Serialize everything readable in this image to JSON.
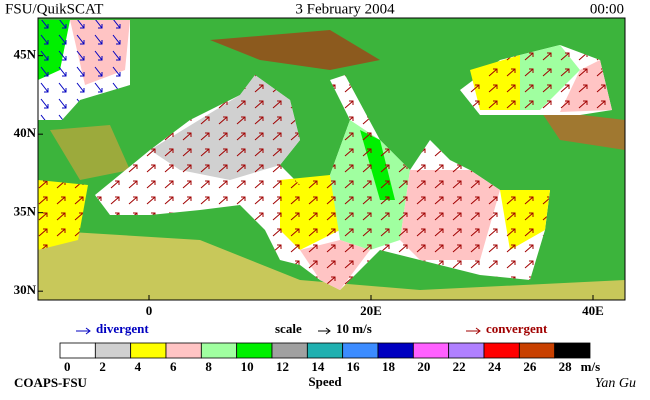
{
  "header": {
    "left": "FSU/QuikSCAT",
    "center": "3 February 2004",
    "right": "00:00"
  },
  "map": {
    "lat_ticks": [
      {
        "value": 45,
        "label": "45N"
      },
      {
        "value": 40,
        "label": "40N"
      },
      {
        "value": 35,
        "label": "35N"
      },
      {
        "value": 30,
        "label": "30N"
      }
    ],
    "lon_ticks": [
      {
        "value": 0,
        "label": "0"
      },
      {
        "value": 20,
        "label": "20E"
      },
      {
        "value": 40,
        "label": "40E"
      }
    ]
  },
  "legend": {
    "divergent": "divergent",
    "scale": "scale",
    "scale_value": "10 m/s",
    "convergent": "convergent"
  },
  "colorbar": {
    "title": "Speed",
    "unit": "m/s",
    "levels": [
      0,
      2,
      4,
      6,
      8,
      10,
      12,
      14,
      16,
      18,
      20,
      22,
      24,
      26,
      28
    ],
    "colors": [
      "#ffffff",
      "#d0d0d0",
      "#ffff00",
      "#ffc4c4",
      "#a0ffa0",
      "#00f000",
      "#a0a0a0",
      "#20b0b0",
      "#3c8cff",
      "#0000c0",
      "#ff60ff",
      "#b080ff",
      "#ff0000",
      "#c84000",
      "#000000"
    ]
  },
  "footer": {
    "left": "COAPS-FSU",
    "right": "Yan Gu"
  }
}
